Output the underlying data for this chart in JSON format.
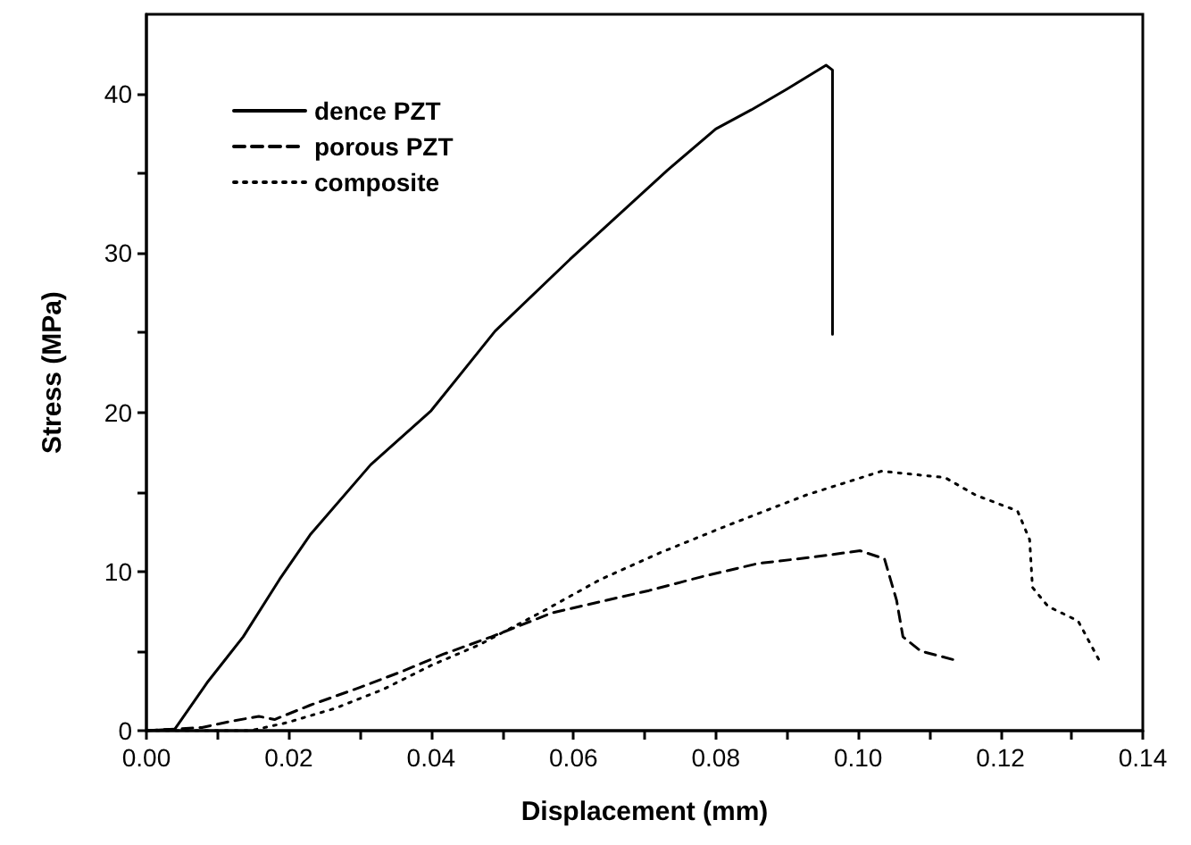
{
  "chart_data": {
    "type": "line",
    "xlabel": "Displacement (mm)",
    "ylabel": "Stress (MPa)",
    "xlim": [
      0,
      0.14
    ],
    "ylim": [
      0,
      45
    ],
    "xticks": [
      {
        "value": 0,
        "label": "0.00"
      },
      0.02,
      0.04,
      0.06,
      0.08,
      {
        "value": 0.1,
        "label": "0.10"
      },
      0.12,
      0.14
    ],
    "yticks": [
      0,
      10,
      20,
      30,
      40
    ],
    "grid": false,
    "legend": "top left",
    "marker": "none",
    "series": [
      {
        "name": "dence PZT",
        "color": "#000000",
        "line_style": "solid",
        "x": [
          0,
          0.004,
          0.0085,
          0.0136,
          0.0187,
          0.023,
          0.0315,
          0.04,
          0.049,
          0.0595,
          0.0732,
          0.08,
          0.085,
          0.09,
          0.0955,
          0.0964,
          0.0964
        ],
        "values": [
          0,
          0.1,
          3.0,
          5.9,
          9.5,
          12.3,
          16.7,
          20.1,
          25.1,
          29.6,
          35.2,
          37.8,
          39.0,
          40.3,
          41.8,
          41.5,
          24.9
        ]
      },
      {
        "name": "porous PZT",
        "color": "#000000",
        "line_style": "dashed",
        "x": [
          0,
          0.0078,
          0.012,
          0.0158,
          0.018,
          0.023,
          0.0299,
          0.0358,
          0.0417,
          0.0485,
          0.057,
          0.0706,
          0.0783,
          0.0859,
          0.0936,
          0.1003,
          0.1037,
          0.1054,
          0.1063,
          0.1088,
          0.1139
        ],
        "values": [
          0,
          0.2,
          0.6,
          0.9,
          0.7,
          1.6,
          2.7,
          3.7,
          4.8,
          5.9,
          7.4,
          8.8,
          9.7,
          10.5,
          10.9,
          11.3,
          10.8,
          8.2,
          5.9,
          5.0,
          4.4
        ]
      },
      {
        "name": "composite",
        "color": "#000000",
        "line_style": "dotted",
        "x": [
          0,
          0.0146,
          0.0197,
          0.0265,
          0.0333,
          0.04,
          0.0468,
          0.0553,
          0.0638,
          0.0723,
          0.0817,
          0.0927,
          0.1033,
          0.1122,
          0.1165,
          0.1224,
          0.1241,
          0.1245,
          0.1267,
          0.1309,
          0.1339
        ],
        "values": [
          0,
          0,
          0.5,
          1.4,
          2.6,
          4.1,
          5.4,
          7.4,
          9.5,
          11.2,
          12.9,
          14.8,
          16.3,
          15.9,
          14.8,
          13.8,
          12.0,
          9.0,
          7.8,
          6.9,
          4.4
        ]
      }
    ]
  }
}
